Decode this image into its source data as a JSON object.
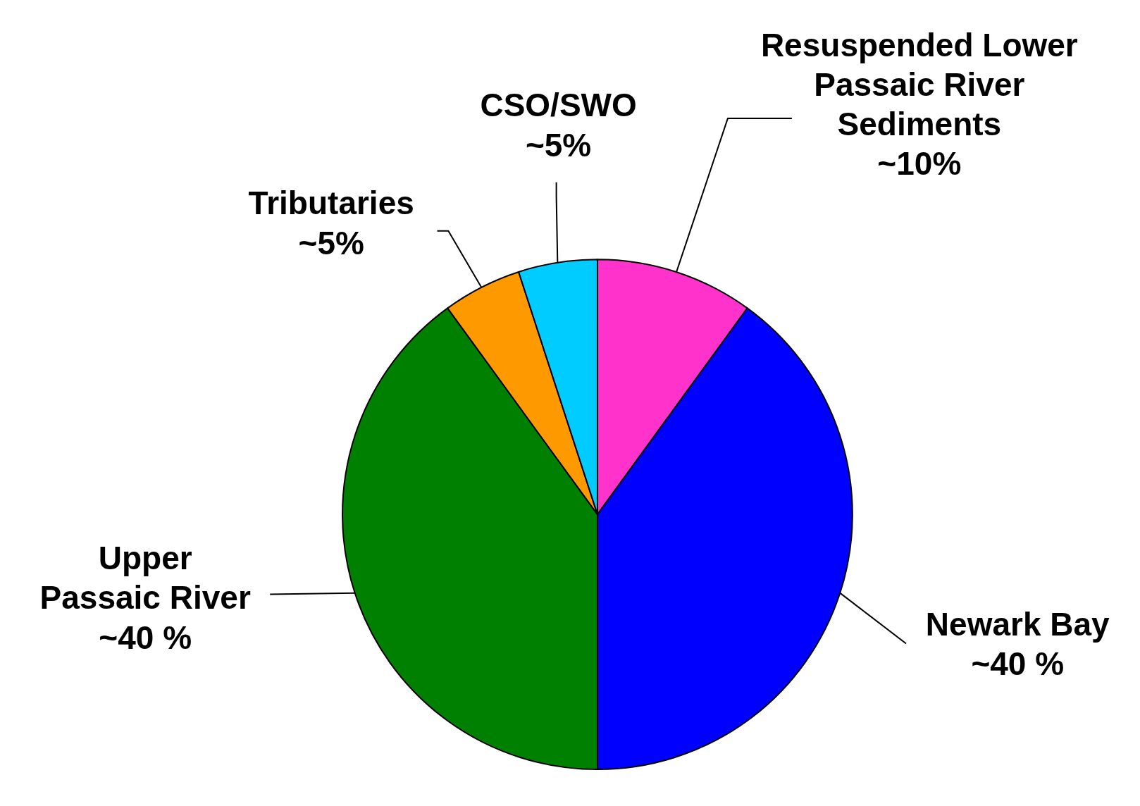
{
  "chart_data": {
    "type": "pie",
    "categories": [
      "Resuspended Lower Passaic River Sediments",
      "Newark Bay",
      "Upper Passaic River",
      "Tributaries",
      "CSO/SWO"
    ],
    "values": [
      10,
      40,
      40,
      5,
      5
    ],
    "colors": [
      "#ff33cc",
      "#0000ff",
      "#008000",
      "#ff9900",
      "#00ccff"
    ],
    "value_labels": [
      "~10%",
      "~40 %",
      "~40 %",
      "~5%",
      "~5%"
    ]
  }
}
